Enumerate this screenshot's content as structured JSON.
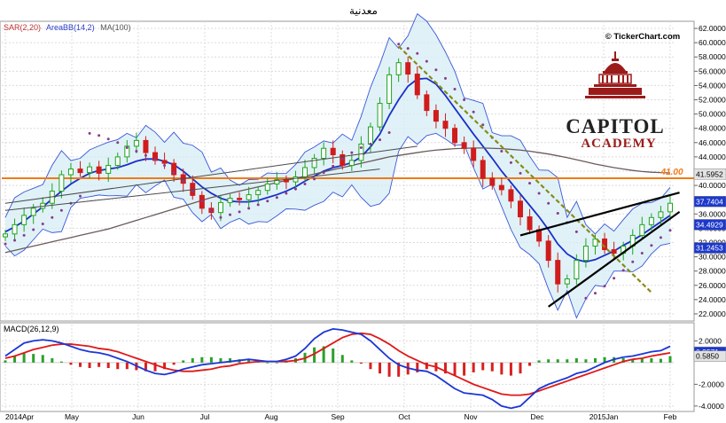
{
  "title": "معدنية",
  "watermark": "© TickerChart.com",
  "logo": {
    "line1": "CAPITOL",
    "line2": "ACADEMY",
    "color": "#9b1b1b"
  },
  "indicators": {
    "sar": "SAR(2,20)",
    "bb": "AreaBB(14,2)",
    "ma": "MA(100)",
    "macd": "MACD(26,12,9)"
  },
  "colors": {
    "up": "#1fa31f",
    "down": "#d01c1c",
    "sar": "#8a3a8a",
    "bb": "#3a56d8",
    "bbfill": "#d6eef5",
    "ma": "#6b5a5a",
    "hline": "#f07a18",
    "trend": "#000000",
    "dashtrend": "#8a8a14",
    "macd": "#1a36d6",
    "signal": "#e01818"
  },
  "chart_data": [
    {
      "type": "candlestick",
      "ylim": [
        21,
        63
      ],
      "y_ticks": [
        "22.0000",
        "24.0000",
        "26.0000",
        "28.0000",
        "30.0000",
        "32.0000",
        "34.0000",
        "36.0000",
        "38.0000",
        "40.0000",
        "42.0000",
        "44.0000",
        "46.0000",
        "48.0000",
        "50.0000",
        "52.0000",
        "54.0000",
        "56.0000",
        "58.0000",
        "60.0000",
        "62.0000"
      ],
      "x_labels": [
        "2014Apr",
        "May",
        "Jun",
        "Jul",
        "Aug",
        "Sep",
        "Oct",
        "Nov",
        "Dec",
        "2015Jan",
        "Feb"
      ],
      "close": [
        33.2,
        34.5,
        35.8,
        36.8,
        37.5,
        39.2,
        41.5,
        42.3,
        41.8,
        42.6,
        41.7,
        42.8,
        44.0,
        45.5,
        46.3,
        44.6,
        43.5,
        43.1,
        41.5,
        40.3,
        38.6,
        36.8,
        36.2,
        37.6,
        38.2,
        38.0,
        38.7,
        39.3,
        40.2,
        40.8,
        40.5,
        41.2,
        42.5,
        43.8,
        45.2,
        44.3,
        42.8,
        43.5,
        45.8,
        48.2,
        51.5,
        55.5,
        57.2,
        55.6,
        52.7,
        50.5,
        49.0,
        48.0,
        46.0,
        45.2,
        43.5,
        41.0,
        40.0,
        39.4,
        37.8,
        35.6,
        33.8,
        32.2,
        29.5,
        26.2,
        26.9,
        29.5,
        31.5,
        32.5,
        31.0,
        30.5,
        31.5,
        33.0,
        34.5,
        35.5,
        36.3,
        37.5
      ],
      "sar": [
        31.8,
        32.3,
        33.0,
        33.8,
        34.6,
        35.5,
        36.5,
        37.5,
        38.5,
        47.3,
        47.0,
        46.5,
        46.0,
        45.3,
        44.8,
        44.2,
        43.6,
        42.8,
        41.8,
        40.6,
        39.2,
        37.8,
        36.5,
        35.5,
        35.9,
        36.3,
        36.8,
        37.3,
        37.8,
        38.3,
        38.9,
        39.5,
        40.2,
        40.9,
        41.8,
        42.7,
        43.7,
        44.6,
        45.3,
        45.8,
        46.4,
        47.4,
        59.8,
        59.2,
        58.5,
        57.4,
        56.2,
        55.0,
        53.5,
        52.0,
        50.3,
        48.5,
        46.7,
        44.8,
        43.2,
        41.7,
        40.3,
        38.9,
        37.5,
        36.1,
        34.8,
        33.5,
        24.2,
        24.9,
        25.9,
        27.0,
        28.1,
        29.3,
        30.5,
        31.6,
        32.7,
        33.7
      ],
      "bb_mid": [
        33.5,
        34.2,
        35.0,
        36.0,
        37.0,
        38.1,
        39.2,
        40.2,
        41.0,
        41.7,
        42.1,
        42.3,
        42.5,
        42.9,
        43.4,
        43.7,
        43.7,
        43.4,
        42.9,
        42.0,
        40.9,
        39.8,
        38.9,
        38.2,
        37.8,
        37.7,
        37.7,
        37.9,
        38.3,
        38.7,
        39.2,
        39.8,
        40.6,
        41.3,
        42.0,
        42.5,
        42.8,
        43.2,
        44.0,
        45.4,
        47.2,
        49.8,
        52.0,
        53.9,
        54.9,
        55.0,
        54.2,
        52.6,
        50.8,
        49.0,
        47.2,
        45.5,
        43.8,
        42.0,
        40.4,
        38.8,
        37.2,
        35.6,
        33.8,
        31.8,
        30.4,
        29.6,
        29.3,
        29.6,
        30.2,
        30.8,
        31.6,
        32.3,
        33.1,
        34.0,
        34.9,
        35.8
      ],
      "ma100": [
        30.6,
        30.9,
        31.2,
        31.5,
        31.8,
        32.1,
        32.4,
        32.7,
        33.0,
        33.3,
        33.6,
        33.9,
        34.3,
        34.7,
        35.1,
        35.5,
        35.9,
        36.3,
        36.7,
        37.1,
        37.5,
        37.9,
        38.3,
        38.6,
        38.9,
        39.2,
        39.5,
        39.8,
        40.1,
        40.4,
        40.7,
        41.0,
        41.3,
        41.6,
        41.9,
        42.2,
        42.5,
        42.8,
        43.1,
        43.4,
        43.7,
        44.0,
        44.2,
        44.4,
        44.6,
        44.8,
        44.95,
        45.05,
        45.15,
        45.2,
        45.25,
        45.25,
        45.2,
        45.15,
        45.05,
        44.95,
        44.8,
        44.6,
        44.4,
        44.15,
        43.9,
        43.6,
        43.3,
        43.0,
        42.75,
        42.5,
        42.3,
        42.1,
        41.95,
        41.85,
        41.8,
        41.75
      ],
      "horizontal_level": 41.0,
      "horizontal_label": "41.00",
      "price_badges": [
        {
          "label": "41.5952",
          "value": 41.5952,
          "bg": "#e3e3e3",
          "fg": "#000000"
        },
        {
          "label": "37.7404",
          "value": 37.7404,
          "bg": "#1c38cc",
          "fg": "#ffffff"
        },
        {
          "label": "34.4929",
          "value": 34.4929,
          "bg": "#1c38cc",
          "fg": "#ffffff"
        },
        {
          "label": "31.2453",
          "value": 31.2453,
          "bg": "#1c38cc",
          "fg": "#ffffff"
        }
      ]
    },
    {
      "type": "line",
      "ylim": [
        -4.5,
        3.5
      ],
      "y_ticks": [
        "2.0000",
        "-2.0000",
        "-4.0000"
      ],
      "macd": [
        0.6,
        1.2,
        1.8,
        2.0,
        2.1,
        2.0,
        1.8,
        1.5,
        1.2,
        1.0,
        0.9,
        0.7,
        0.4,
        0.1,
        -0.3,
        -0.7,
        -1.0,
        -1.1,
        -0.9,
        -0.6,
        -0.4,
        -0.2,
        -0.1,
        0.0,
        0.1,
        0.2,
        0.3,
        0.2,
        0.1,
        0.1,
        0.3,
        0.6,
        1.3,
        2.2,
        2.8,
        3.1,
        3.0,
        2.8,
        2.6,
        2.0,
        1.2,
        0.4,
        -0.2,
        -0.5,
        -0.7,
        -0.8,
        -1.2,
        -1.8,
        -2.4,
        -2.8,
        -2.9,
        -3.0,
        -3.4,
        -4.0,
        -4.2,
        -4.0,
        -3.2,
        -2.4,
        -2.0,
        -1.7,
        -1.4,
        -1.0,
        -0.8,
        -0.4,
        0.0,
        0.3,
        0.5,
        0.6,
        0.8,
        1.0,
        1.1,
        1.5
      ],
      "signal": [
        0.4,
        0.6,
        0.9,
        1.2,
        1.4,
        1.6,
        1.7,
        1.7,
        1.6,
        1.5,
        1.3,
        1.2,
        1.0,
        0.7,
        0.4,
        0.1,
        -0.2,
        -0.5,
        -0.7,
        -0.8,
        -0.8,
        -0.7,
        -0.6,
        -0.4,
        -0.3,
        -0.1,
        0.0,
        0.1,
        0.1,
        0.1,
        0.1,
        0.2,
        0.4,
        0.8,
        1.3,
        1.8,
        2.3,
        2.6,
        2.7,
        2.6,
        2.2,
        1.7,
        1.1,
        0.6,
        0.2,
        -0.2,
        -0.4,
        -0.8,
        -1.2,
        -1.6,
        -2.0,
        -2.3,
        -2.6,
        -2.9,
        -3.0,
        -3.0,
        -2.9,
        -2.6,
        -2.3,
        -2.0,
        -1.7,
        -1.4,
        -1.1,
        -0.8,
        -0.5,
        -0.2,
        0.1,
        0.3,
        0.4,
        0.6,
        0.75,
        0.9
      ],
      "badges": [
        {
          "label": "0.9571",
          "value": 0.9571,
          "bg": "#1c38cc",
          "fg": "#ffffff"
        },
        {
          "label": "0.5850",
          "value": 0.585,
          "bg": "#e3e3e3",
          "fg": "#000000"
        }
      ]
    }
  ]
}
